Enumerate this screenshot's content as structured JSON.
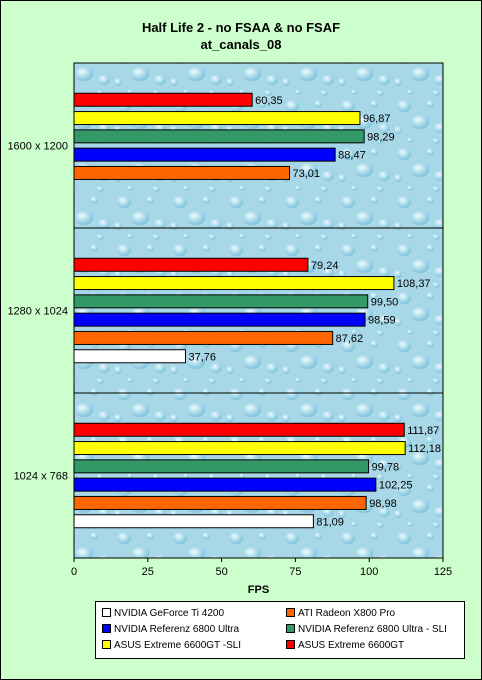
{
  "title": {
    "line1": "Half Life 2 - no FSAA & no FSAF",
    "line2": "at_canals_08"
  },
  "chart_data": {
    "type": "bar",
    "orientation": "horizontal",
    "title": "Half Life 2 - no FSAA & no FSAF at_canals_08",
    "xlabel": "FPS",
    "ylabel": "",
    "xlim": [
      0,
      125
    ],
    "x_ticks": [
      "0",
      "25",
      "50",
      "75",
      "100",
      "125"
    ],
    "categories": [
      "1600 x 1200",
      "1280 x 1024",
      "1024 x 768"
    ],
    "series": [
      {
        "name": "NVIDIA GeForce Ti 4200",
        "color": "#ffffff",
        "values": [
          null,
          37.76,
          81.09
        ],
        "labels": [
          null,
          "37,76",
          "81,09"
        ]
      },
      {
        "name": "ATI Radeon X800 Pro",
        "color": "#ff6600",
        "values": [
          73.01,
          87.62,
          98.98
        ],
        "labels": [
          "73,01",
          "87,62",
          "98,98"
        ]
      },
      {
        "name": "NVIDIA  Referenz 6800 Ultra",
        "color": "#0000ff",
        "values": [
          88.47,
          98.59,
          102.25
        ],
        "labels": [
          "88,47",
          "98,59",
          "102,25"
        ]
      },
      {
        "name": "NVIDIA  Referenz 6800 Ultra - SLI",
        "color": "#339966",
        "values": [
          98.29,
          99.5,
          99.78
        ],
        "labels": [
          "98,29",
          "99,50",
          "99,78"
        ]
      },
      {
        "name": "ASUS Extreme 6600GT -SLI",
        "color": "#ffff00",
        "values": [
          96.87,
          108.37,
          112.18
        ],
        "labels": [
          "96,87",
          "108,37",
          "112,18"
        ]
      },
      {
        "name": "ASUS Extreme 6600GT",
        "color": "#ff0000",
        "values": [
          60.35,
          79.24,
          111.87
        ],
        "labels": [
          "60,35",
          "79,24",
          "111,87"
        ]
      }
    ],
    "grid": false,
    "legend_position": "bottom",
    "plot_background": "water-droplet texture"
  },
  "legend": {
    "items": [
      {
        "label": "NVIDIA GeForce Ti 4200",
        "color": "#ffffff"
      },
      {
        "label": "ATI Radeon X800 Pro",
        "color": "#ff6600"
      },
      {
        "label": "NVIDIA  Referenz 6800 Ultra",
        "color": "#0000ff"
      },
      {
        "label": "NVIDIA  Referenz 6800 Ultra - SLI",
        "color": "#339966"
      },
      {
        "label": "ASUS Extreme 6600GT -SLI",
        "color": "#ffff00"
      },
      {
        "label": "ASUS Extreme 6600GT",
        "color": "#ff0000"
      }
    ]
  }
}
